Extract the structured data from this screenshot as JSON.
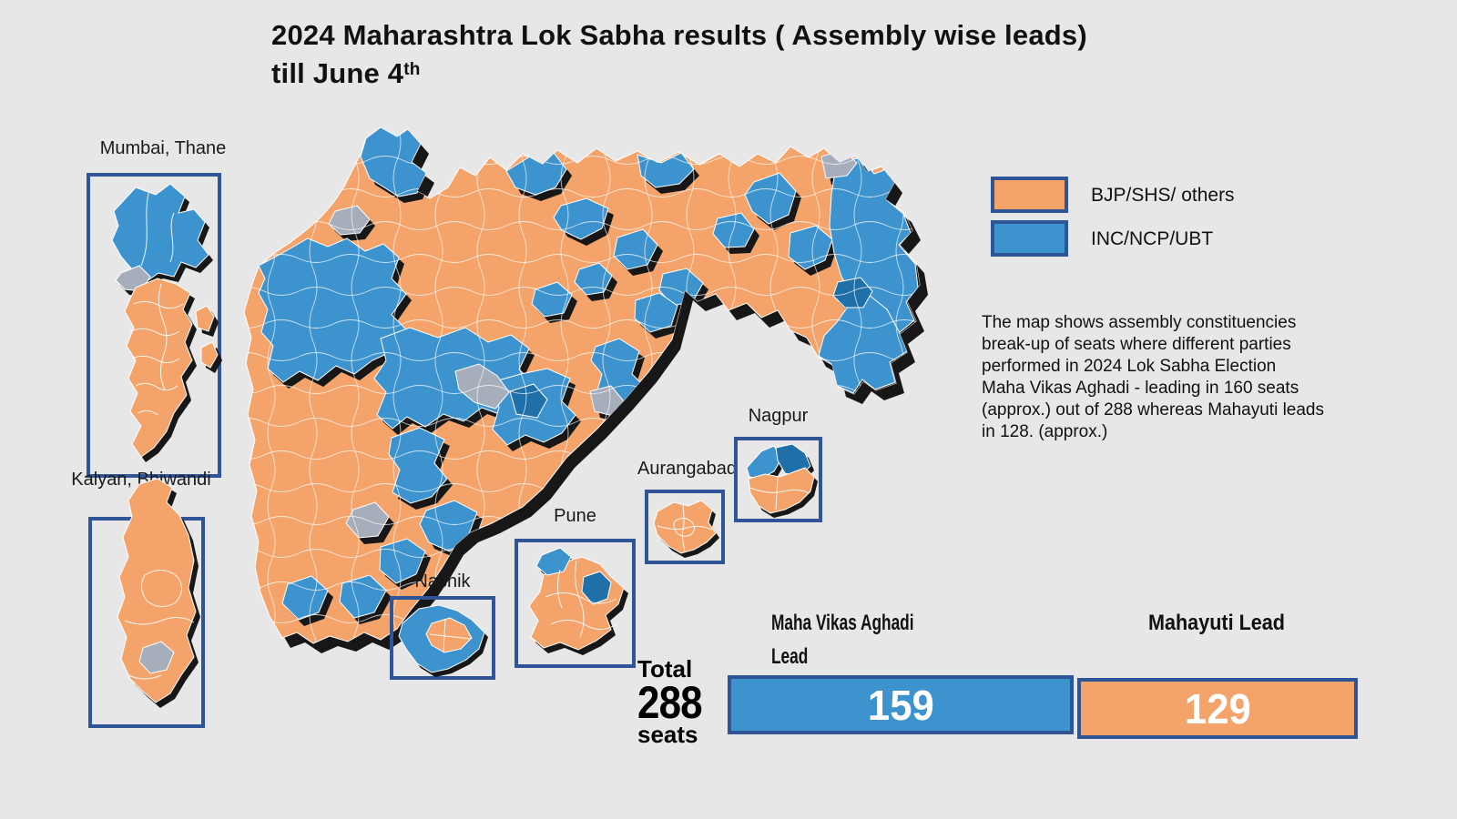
{
  "colors": {
    "bg": "#E7E7E7",
    "orange": "#F4A46B",
    "blue": "#3D93CE",
    "dark_blue": "#1F6FA8",
    "grey": "#A6ADBB",
    "navy": "#2F5597",
    "shadow": "#171717"
  },
  "title": {
    "line1": "2024 Maharashtra Lok Sabha results ( Assembly wise leads)",
    "line2": "till June 4",
    "line2_sup": "th"
  },
  "legend": {
    "items": [
      {
        "label": "BJP/SHS/ others",
        "color_key": "orange"
      },
      {
        "label": "INC/NCP/UBT",
        "color_key": "blue"
      }
    ]
  },
  "description": "The map shows assembly constituencies\nbreak-up of seats where different parties\nperformed in 2024 Lok Sabha Election\nMaha Vikas Aghadi - leading in 160 seats\n(approx.) out of 288 whereas Mahayuti leads\nin 128. (approx.)",
  "insets": [
    {
      "label": "Mumbai, Thane"
    },
    {
      "label": "Kalyan, Bhiwandi"
    },
    {
      "label": "Nashik"
    },
    {
      "label": "Pune"
    },
    {
      "label": "Aurangabad"
    },
    {
      "label": "Nagpur"
    }
  ],
  "totals": {
    "label_top": "Total",
    "value": "288",
    "label_bottom": "seats"
  },
  "bars": [
    {
      "label": "Maha Vikas Aghadi Lead",
      "value": 159,
      "color_key": "blue"
    },
    {
      "label": "Mahayuti Lead",
      "value": 129,
      "color_key": "orange"
    }
  ],
  "chart_data": {
    "type": "map-choropleth",
    "title": "2024 Maharashtra Lok Sabha results ( Assembly wise leads) till June 4th",
    "region": "Maharashtra assembly constituencies",
    "total_seats": 288,
    "legend": [
      {
        "party": "BJP/SHS/ others",
        "color": "#F4A46B"
      },
      {
        "party": "INC/NCP/UBT",
        "color": "#3D93CE"
      }
    ],
    "series": [
      {
        "name": "Maha Vikas Aghadi Lead",
        "seats": 159
      },
      {
        "name": "Mahayuti Lead",
        "seats": 129
      }
    ],
    "note_values": {
      "mva_leading_approx": 160,
      "mahayuti_leading_approx": 128
    },
    "inset_regions": [
      "Mumbai, Thane",
      "Kalyan, Bhiwandi",
      "Nashik",
      "Pune",
      "Aurangabad",
      "Nagpur"
    ]
  }
}
